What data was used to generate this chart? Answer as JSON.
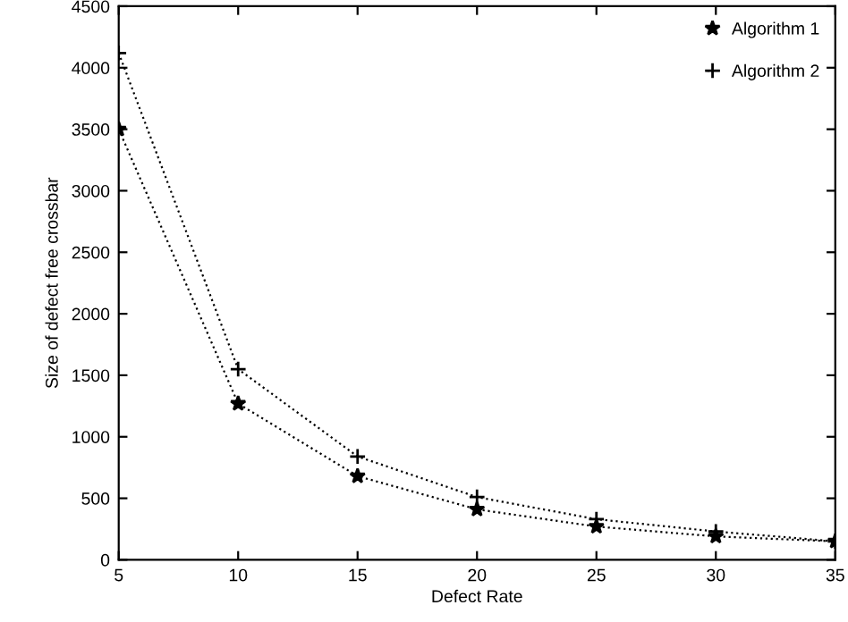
{
  "chart_data": {
    "type": "line",
    "xlabel": "Defect Rate",
    "ylabel": "Size of defect free crossbar",
    "x": [
      5,
      10,
      15,
      20,
      25,
      30,
      35
    ],
    "series": [
      {
        "name": "Algorithm 1",
        "color": "#000000",
        "marker": "star",
        "values": [
          3500,
          1270,
          680,
          410,
          270,
          190,
          150
        ]
      },
      {
        "name": "Algorithm 2",
        "color": "#000000",
        "marker": "cross",
        "values": [
          4120,
          1550,
          840,
          510,
          330,
          230,
          150
        ]
      }
    ],
    "xlim": [
      5,
      35
    ],
    "xticks": [
      5,
      10,
      15,
      20,
      25,
      30,
      35
    ],
    "ylim": [
      0,
      4500
    ],
    "yticks": [
      0,
      500,
      1000,
      1500,
      2000,
      2500,
      3000,
      3500,
      4000,
      4500
    ],
    "line_style": "dotted",
    "grid": false,
    "legend": "top right"
  }
}
